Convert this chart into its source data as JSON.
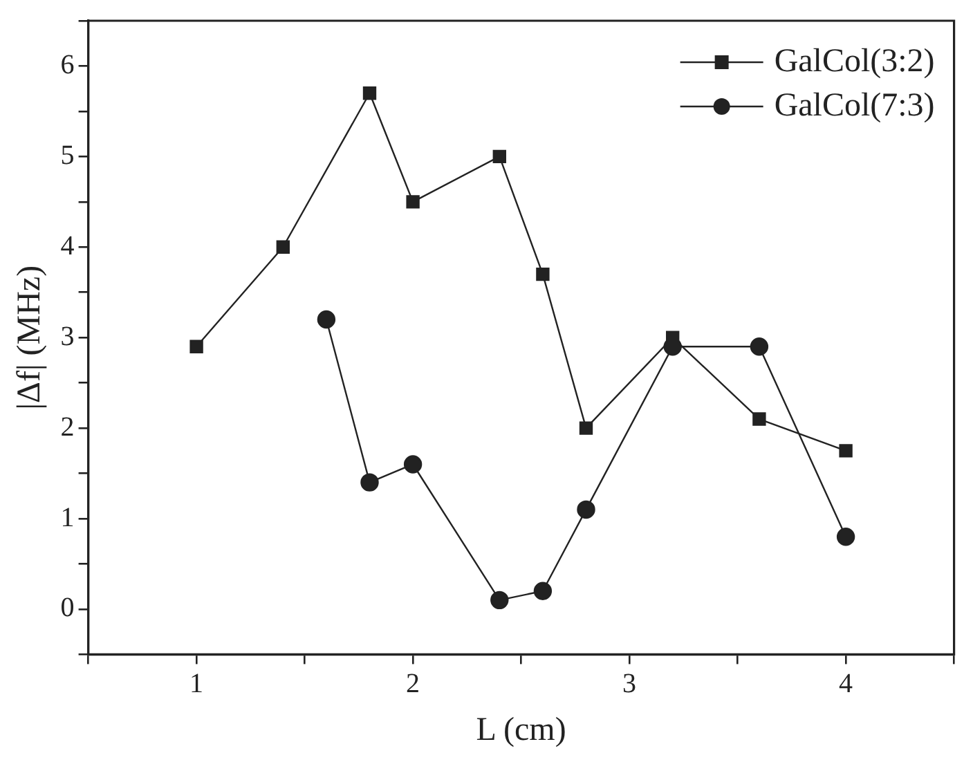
{
  "chart_data": {
    "type": "line",
    "xlabel": "L (cm)",
    "ylabel": "|Δf| (MHz)",
    "xlim": [
      0.5,
      4.5
    ],
    "xticks": [
      {
        "value": 0.5,
        "label": null
      },
      1,
      {
        "value": 1.5,
        "label": null
      },
      2,
      {
        "value": 2.5,
        "label": null
      },
      3,
      {
        "value": 3.5,
        "label": null
      },
      4,
      {
        "value": 4.5,
        "label": null
      }
    ],
    "ylim": [
      -0.5,
      6.5
    ],
    "yticks": [
      {
        "value": -0.5,
        "label": null
      },
      0,
      {
        "value": 0.5,
        "label": null
      },
      1,
      {
        "value": 1.5,
        "label": null
      },
      2,
      {
        "value": 2.5,
        "label": null
      },
      3,
      {
        "value": 3.5,
        "label": null
      },
      4,
      {
        "value": 4.5,
        "label": null
      },
      5,
      {
        "value": 5.5,
        "label": null
      },
      6,
      {
        "value": 6.5,
        "label": null
      }
    ],
    "grid": false,
    "legend": "top right",
    "line_style": "solid",
    "series": [
      {
        "name": "GalCol(3:2)",
        "color": "#222222",
        "marker": "square",
        "x": [
          1,
          1.4,
          1.8,
          2,
          2.4,
          2.6,
          2.8,
          3.2,
          3.6,
          4
        ],
        "values": [
          2.9,
          4.0,
          5.7,
          4.5,
          5.0,
          3.7,
          2.0,
          3.0,
          2.1,
          1.75
        ]
      },
      {
        "name": "GalCol(7:3)",
        "color": "#222222",
        "marker": "circle",
        "x": [
          1.6,
          1.8,
          2,
          2.4,
          2.6,
          2.8,
          3.2,
          3.6,
          4
        ],
        "values": [
          3.2,
          1.4,
          1.6,
          0.1,
          0.2,
          1.1,
          2.9,
          2.9,
          0.8
        ]
      }
    ]
  }
}
